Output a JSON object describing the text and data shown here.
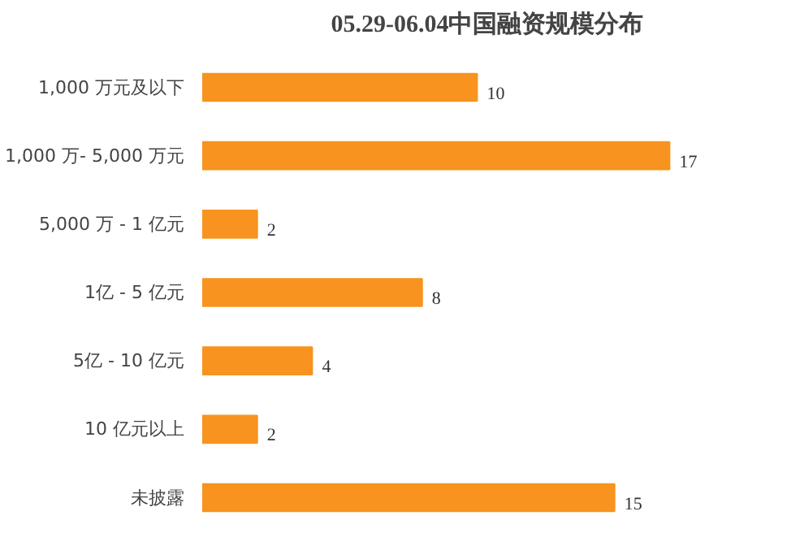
{
  "chart_data": {
    "type": "bar",
    "orientation": "horizontal",
    "title": "05.29-06.04中国融资规模分布",
    "categories": [
      "1,000 万元及以下",
      "1,000 万- 5,000 万元",
      "5,000 万 - 1 亿元",
      "1亿 - 5 亿元",
      "5亿 - 10 亿元",
      "10 亿元以上",
      "未披露"
    ],
    "values": [
      10,
      17,
      2,
      8,
      4,
      2,
      15
    ],
    "color": "#f7931e",
    "data_labels": true
  }
}
